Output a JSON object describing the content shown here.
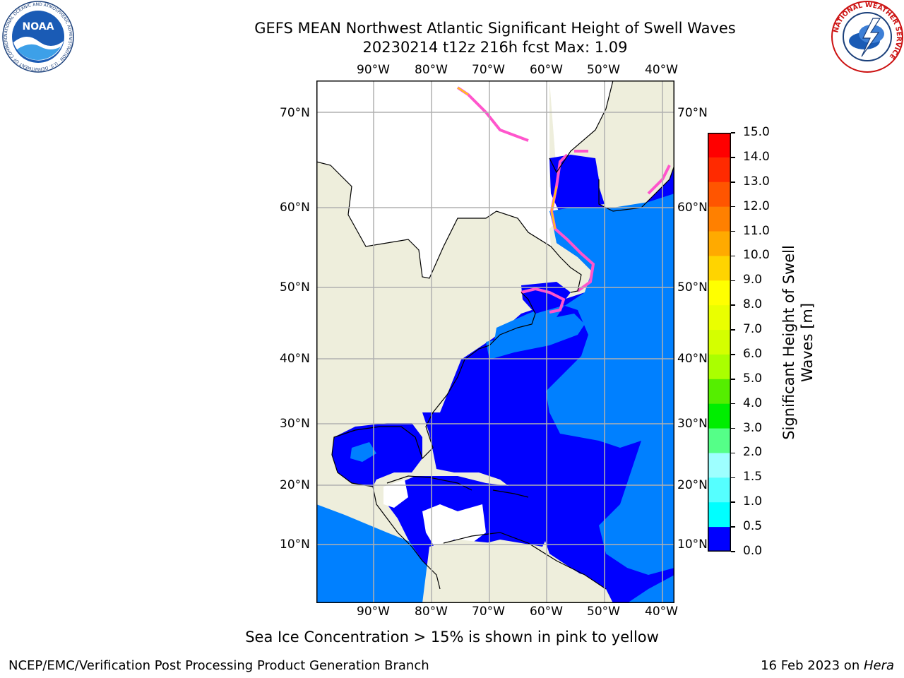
{
  "header": {
    "title_line1": "GEFS MEAN Northwest Atlantic Significant Height of Swell Waves",
    "title_line2": "20230214 t12z 216h fcst   Max: 1.09"
  },
  "logos": {
    "left": {
      "name": "NOAA",
      "ring_text": "NATIONAL OCEANIC AND ATMOSPHERIC ADMINISTRATION · U.S. DEPARTMENT OF COMMERCE"
    },
    "right": {
      "ring_text": "NATIONAL WEATHER SERVICE"
    }
  },
  "map": {
    "lon_labels": [
      "90°W",
      "80°W",
      "70°W",
      "60°W",
      "50°W",
      "40°W"
    ],
    "lat_labels": [
      "70°N",
      "60°N",
      "50°N",
      "40°N",
      "30°N",
      "20°N",
      "10°N"
    ],
    "colors": {
      "land": "#eeeedc",
      "ice_free_land": "#ffffff",
      "ocean_low": "#0000ff",
      "ocean_mid": "#0080ff",
      "grid": "#b0b0b0",
      "coast": "#000000",
      "ice": "#ff55cc"
    }
  },
  "colorbar": {
    "title_line1": "Significant Height of Swell",
    "title_line2": "Waves [m]",
    "tick_labels": [
      "15.0",
      "14.0",
      "13.0",
      "12.0",
      "11.0",
      "10.0",
      "9.0",
      "8.0",
      "7.0",
      "6.0",
      "5.0",
      "4.0",
      "3.0",
      "2.0",
      "1.5",
      "1.0",
      "0.5",
      "0.0"
    ],
    "colors": [
      "#ff0000",
      "#ff2a00",
      "#ff5500",
      "#ff8000",
      "#ffaa00",
      "#ffd400",
      "#ffff00",
      "#eaff00",
      "#d4ff00",
      "#aaff00",
      "#55ee00",
      "#00ee00",
      "#55ff88",
      "#9effff",
      "#55ffff",
      "#00ffff",
      "#0080ff",
      "#0000ff"
    ]
  },
  "footer": {
    "note": "Sea Ice Concentration > 15% is shown in pink to yellow",
    "left": "NCEP/EMC/Verification Post Processing Product Generation Branch",
    "right_date": "16 Feb 2023 on ",
    "right_host": "Hera"
  }
}
